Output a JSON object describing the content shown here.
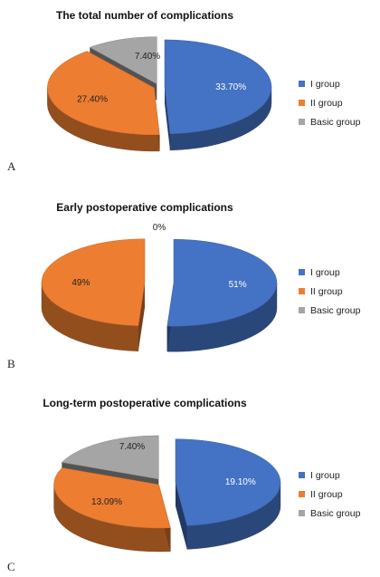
{
  "colors": {
    "I group": "#4472c4",
    "II group": "#ed7d31",
    "Basic group": "#a5a5a5"
  },
  "chart_data": [
    {
      "type": "pie",
      "panel_label": "A",
      "title": "The total number of complications",
      "legend": [
        "I group",
        "II group",
        "Basic group"
      ],
      "legend_position": "right",
      "slices": [
        {
          "name": "I group",
          "value": 33.7,
          "label": "33.70%"
        },
        {
          "name": "II group",
          "value": 27.4,
          "label": "27.40%"
        },
        {
          "name": "Basic group",
          "value": 7.4,
          "label": "7.40%"
        }
      ]
    },
    {
      "type": "pie",
      "panel_label": "B",
      "title": "Early postoperative complications",
      "legend": [
        "I group",
        "II group",
        "Basic group"
      ],
      "legend_position": "right",
      "slices": [
        {
          "name": "I group",
          "value": 51,
          "label": "51%"
        },
        {
          "name": "II group",
          "value": 49,
          "label": "49%"
        },
        {
          "name": "Basic group",
          "value": 0,
          "label": "0%"
        }
      ]
    },
    {
      "type": "pie",
      "panel_label": "C",
      "title": "Long-term postoperative complications",
      "legend": [
        "I group",
        "II group",
        "Basic group"
      ],
      "legend_position": "right",
      "slices": [
        {
          "name": "I group",
          "value": 19.1,
          "label": "19.10%"
        },
        {
          "name": "II group",
          "value": 13.09,
          "label": "13.09%"
        },
        {
          "name": "Basic group",
          "value": 7.4,
          "label": "7.40%"
        }
      ]
    }
  ]
}
